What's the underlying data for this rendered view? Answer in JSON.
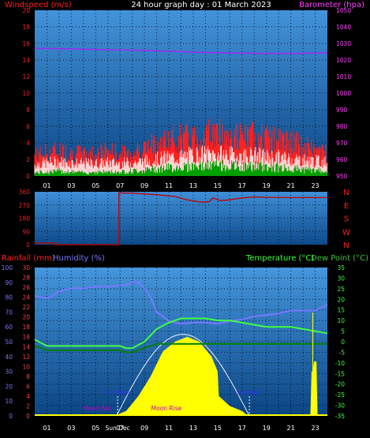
{
  "title": "24 hour graph day : 01 March 2023",
  "colors": {
    "background": "#000000",
    "plot_background_top": "#3d8fd6",
    "plot_background_bottom": "#0d4a8a",
    "grid": "#000000",
    "wind": "#ff2020",
    "gust_low": "#ffffff",
    "wind_avg": "#00a000",
    "barometer": "#9a2ef0",
    "barometer_label": "#ff40ff",
    "direction": "#c00000",
    "direction_axis": "#ff2010",
    "rain": "#ff4040",
    "humidity": "#7878ff",
    "temperature": "#40ff40",
    "dew_point": "#008000",
    "solar": "#ffff00",
    "solar_curve": "#f0f0f0",
    "sun_label": "#3030ff",
    "moon_label": "#c000c0",
    "marker": "#ffff00"
  },
  "chart_data": [
    {
      "type": "line",
      "name": "wind-barometer",
      "ylabel_left": "Windspeed (m/s)",
      "ylabel_right": "Barometer (hpa)",
      "ylim_left": [
        0,
        20
      ],
      "yticks_left": [
        "0",
        "2",
        "4",
        "6",
        "8",
        "10",
        "12",
        "14",
        "16",
        "18",
        "20"
      ],
      "ylim_right": [
        950,
        1050
      ],
      "yticks_right": [
        "950",
        "960",
        "970",
        "980",
        "990",
        "1000",
        "1010",
        "1020",
        "1030",
        "1040",
        "1050"
      ],
      "x_hours": [
        0,
        24
      ],
      "xticks": [
        "01",
        "03",
        "05",
        "07",
        "09",
        "11",
        "13",
        "15",
        "17",
        "19",
        "21",
        "23"
      ],
      "grid": true,
      "series": [
        {
          "name": "Windspeed (m/s)",
          "x": [
            0,
            1,
            2,
            3,
            4,
            5,
            6,
            7,
            8,
            9,
            10,
            11,
            12,
            13,
            14,
            15,
            16,
            17,
            18,
            19,
            20,
            21,
            22,
            23,
            24
          ],
          "values": [
            1.4,
            1.6,
            1.7,
            1.6,
            1.5,
            1.5,
            1.6,
            1.5,
            1.6,
            1.8,
            2.0,
            2.2,
            2.3,
            2.5,
            2.6,
            2.6,
            2.5,
            2.4,
            2.5,
            2.3,
            2.2,
            2.1,
            1.9,
            1.8,
            1.7
          ]
        },
        {
          "name": "Gust (m/s)",
          "x": [
            0,
            1,
            2,
            3,
            4,
            5,
            6,
            7,
            8,
            9,
            10,
            11,
            12,
            13,
            14,
            15,
            16,
            17,
            18,
            19,
            20,
            21,
            22,
            23,
            24
          ],
          "values": [
            2.5,
            2.8,
            3.0,
            2.8,
            2.6,
            2.7,
            3.0,
            2.6,
            2.8,
            3.3,
            3.8,
            4.2,
            4.5,
            4.6,
            4.9,
            5.0,
            4.7,
            4.5,
            4.6,
            4.4,
            4.2,
            4.0,
            3.5,
            3.0,
            2.8
          ]
        },
        {
          "name": "Average (m/s)",
          "x": [
            0,
            1,
            2,
            3,
            4,
            5,
            6,
            7,
            8,
            9,
            10,
            11,
            12,
            13,
            14,
            15,
            16,
            17,
            18,
            19,
            20,
            21,
            22,
            23,
            24
          ],
          "values": [
            0.4,
            0.5,
            0.6,
            0.5,
            0.4,
            0.5,
            0.5,
            0.5,
            0.6,
            0.7,
            0.9,
            1.0,
            1.1,
            1.2,
            1.2,
            1.3,
            1.2,
            1.1,
            1.2,
            1.1,
            1.0,
            0.9,
            0.8,
            0.7,
            0.6
          ]
        },
        {
          "name": "Barometer (hpa)",
          "x": [
            0,
            2,
            4,
            6,
            8,
            10,
            12,
            14,
            16,
            18,
            20,
            22,
            23.5,
            24
          ],
          "values": [
            1027.0,
            1026.8,
            1026.5,
            1026.2,
            1026.0,
            1025.5,
            1025.0,
            1024.5,
            1024.2,
            1024.0,
            1024.0,
            1024.0,
            1024.2,
            1024.5
          ]
        }
      ]
    },
    {
      "type": "line",
      "name": "wind-direction",
      "ylim": [
        0,
        360
      ],
      "yticks": [
        "0",
        "90",
        "180",
        "270",
        "360"
      ],
      "compass": [
        "N",
        "W",
        "S",
        "E",
        "N"
      ],
      "x_hours": [
        0,
        24
      ],
      "series": [
        {
          "name": "Direction",
          "x": [
            0,
            1.6,
            1.6,
            6.9,
            6.9,
            8,
            10,
            11.5,
            12.5,
            13.5,
            14.3,
            14.6,
            15.2,
            16,
            17,
            18,
            19,
            20,
            21,
            22,
            23,
            24
          ],
          "values": [
            12,
            12,
            0,
            0,
            352,
            350,
            340,
            328,
            305,
            290,
            292,
            318,
            300,
            305,
            318,
            325,
            322,
            322,
            320,
            320,
            320,
            320
          ]
        }
      ]
    },
    {
      "type": "line",
      "name": "rain-humidity-temperature",
      "ylabel_rain": "Rainfall (mm)",
      "ylabel_humidity": "Humidity (%)",
      "ylabel_temp": "Temperature (°C)",
      "ylabel_dew": "Dew Point (°C)",
      "ylim_humidity": [
        0,
        100
      ],
      "yticks_humidity": [
        "0",
        "10",
        "20",
        "30",
        "40",
        "50",
        "60",
        "70",
        "80",
        "90",
        "100"
      ],
      "ylim_rain": [
        0,
        30
      ],
      "yticks_rain": [
        "0",
        "2",
        "4",
        "6",
        "8",
        "10",
        "12",
        "14",
        "16",
        "18",
        "20",
        "22",
        "24",
        "26",
        "28",
        "30"
      ],
      "ylim_temp": [
        -35,
        35
      ],
      "yticks_temp": [
        "-35",
        "-30",
        "-25",
        "-20",
        "-15",
        "-10",
        "-5",
        "0",
        "5",
        "10",
        "15",
        "20",
        "25",
        "30",
        "35"
      ],
      "x_hours": [
        0,
        24
      ],
      "xticks": [
        "01",
        "03",
        "05",
        "07",
        "09",
        "11",
        "13",
        "15",
        "17",
        "19",
        "21",
        "23"
      ],
      "series": [
        {
          "name": "Humidity (%)",
          "x": [
            0,
            0.5,
            1,
            1.5,
            2,
            3,
            4,
            5,
            6,
            7,
            7.5,
            8,
            8.5,
            9,
            9.5,
            10,
            11,
            12,
            13,
            14,
            15,
            16,
            17,
            18,
            19,
            20,
            21,
            22,
            23,
            24
          ],
          "values": [
            81,
            80,
            79,
            81,
            84,
            86,
            86,
            87,
            87,
            88,
            88,
            90,
            90,
            86,
            80,
            70,
            64,
            62,
            63,
            63,
            62,
            64,
            65,
            67,
            68,
            69,
            71,
            71,
            71,
            75
          ]
        },
        {
          "name": "Temperature (°C)",
          "x": [
            0,
            1,
            2,
            3,
            4,
            5,
            6,
            7,
            7.5,
            8,
            9,
            10,
            11,
            12,
            13,
            14,
            15,
            16,
            17,
            18,
            19,
            20,
            21,
            22,
            23,
            24
          ],
          "values": [
            1,
            -2,
            -2,
            -2,
            -2,
            -2,
            -2,
            -2,
            -3,
            -3,
            0,
            6,
            9,
            11,
            11,
            11,
            10,
            10,
            9,
            8,
            7,
            7,
            7,
            6,
            5,
            4
          ]
        },
        {
          "name": "Dew Point (°C)",
          "x": [
            0,
            1,
            2,
            3,
            4,
            5,
            6,
            7,
            7.5,
            8,
            9,
            10,
            11,
            12,
            13,
            14,
            15,
            16,
            17,
            18,
            19,
            20,
            21,
            22,
            23,
            24
          ],
          "values": [
            -2,
            -4,
            -4,
            -4,
            -4,
            -4,
            -4,
            -4,
            -5,
            -5,
            -3,
            -1,
            -1,
            -1,
            -1,
            -1,
            -1,
            -1,
            -1,
            -1,
            -1,
            -1,
            -1,
            -1,
            -1,
            -1
          ]
        },
        {
          "name": "Solar",
          "x": [
            6.5,
            7.5,
            8.5,
            9.5,
            10.5,
            11.5,
            12.5,
            13.5,
            14.5,
            15,
            15.1,
            16,
            17,
            17.5
          ],
          "values": [
            0,
            1,
            4,
            8,
            13,
            15,
            16,
            15,
            12,
            9,
            4,
            2,
            1,
            0
          ]
        },
        {
          "name": "Rainfall (mm)",
          "x": [
            22.3,
            22.6,
            22.7,
            22.8,
            22.9,
            23.1,
            23.2,
            24
          ],
          "values": [
            0,
            0,
            9,
            9,
            11,
            11,
            0,
            0
          ]
        }
      ],
      "annotations": {
        "sun_rise": {
          "label": "Sun Rise",
          "hour": 6.8
        },
        "sun_set": {
          "label": "Sun Set",
          "hour": 17.6
        },
        "moon_set": {
          "label": "Moon Set",
          "hour": 6.4
        },
        "moon_rise": {
          "label": "Moon Rise",
          "hour": 10.8
        },
        "sun_dec": {
          "label": "Sun Dec",
          "hour": 6.6
        },
        "marker_hour": 22.8
      }
    }
  ]
}
